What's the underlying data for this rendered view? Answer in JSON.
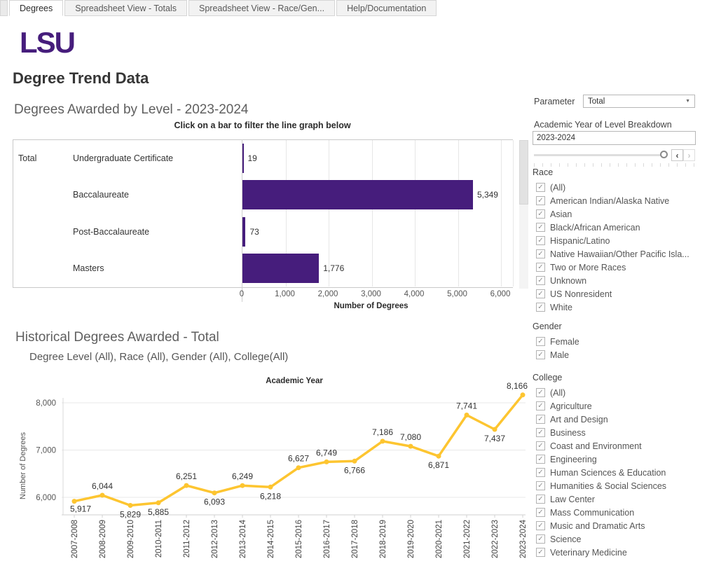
{
  "tabs": [
    {
      "label": "Degrees",
      "active": true
    },
    {
      "label": "Spreadsheet View - Totals",
      "active": false
    },
    {
      "label": "Spreadsheet View - Race/Gen...",
      "active": false
    },
    {
      "label": "Help/Documentation",
      "active": false
    }
  ],
  "logo_text": "LSU",
  "page_title": "Degree Trend Data",
  "colors": {
    "lsu_purple": "#461D7C",
    "lsu_gold": "#FDC530",
    "grid_light": "#e7e7e7",
    "axis_gray": "#cfcfcf",
    "text_dark": "#333333",
    "text_gray": "#555555"
  },
  "icons": {
    "caret": "▼",
    "prev": "‹",
    "next": "›",
    "check": "✓"
  },
  "chart_data": [
    {
      "type": "bar",
      "orientation": "horizontal",
      "title": "Degrees Awarded by Level - 2023-2024",
      "subtitle": "Click on a bar to filter the line graph below",
      "row_header": "Total",
      "categories": [
        "Undergraduate Certificate",
        "Baccalaureate",
        "Post-Baccalaureate",
        "Masters"
      ],
      "values": [
        19,
        5349,
        73,
        1776
      ],
      "value_labels": [
        "19",
        "5,349",
        "73",
        "1,776"
      ],
      "xlabel": "Number of Degrees",
      "xlim": [
        0,
        6000
      ],
      "xticks": [
        "0",
        "1,000",
        "2,000",
        "3,000",
        "4,000",
        "5,000",
        "6,000"
      ],
      "xtick_values": [
        0,
        1000,
        2000,
        3000,
        4000,
        5000,
        6000
      ],
      "grid": true,
      "bar_color": "#461D7C"
    },
    {
      "type": "line",
      "title": "Historical Degrees Awarded - Total",
      "subtitle": "Degree Level (All), Race (All), Gender (All), College(All)",
      "xlabel_top": "Academic Year",
      "ylabel": "Number of Degrees",
      "x": [
        "2007-2008",
        "2008-2009",
        "2009-2010",
        "2010-2011",
        "2011-2012",
        "2012-2013",
        "2013-2014",
        "2014-2015",
        "2015-2016",
        "2016-2017",
        "2017-2018",
        "2018-2019",
        "2019-2020",
        "2020-2021",
        "2021-2022",
        "2022-2023",
        "2023-2024"
      ],
      "values": [
        5917,
        6044,
        5829,
        5885,
        6251,
        6093,
        6249,
        6218,
        6627,
        6749,
        6766,
        7186,
        7080,
        6871,
        7741,
        7437,
        8166
      ],
      "value_labels": [
        "5,917",
        "6,044",
        "5,829",
        "5,885",
        "6,251",
        "6,093",
        "6,249",
        "6,218",
        "6,627",
        "6,749",
        "6,766",
        "7,186",
        "7,080",
        "6,871",
        "7,741",
        "7,437",
        "8,166"
      ],
      "label_pos": [
        "below-start",
        "above",
        "below",
        "below",
        "above",
        "below",
        "above",
        "below",
        "above",
        "above",
        "below",
        "above",
        "above",
        "below",
        "above",
        "below",
        "above-end"
      ],
      "yticks": [
        "6,000",
        "7,000",
        "8,000"
      ],
      "ytick_values": [
        6000,
        7000,
        8000
      ],
      "ylim": [
        5700,
        8300
      ],
      "grid": true,
      "line_color": "#FDC530"
    }
  ],
  "sidebar": {
    "parameter_label": "Parameter",
    "parameter_value": "Total",
    "year_filter_label": "Academic Year of Level Breakdown",
    "year_filter_value": "2023-2024",
    "race": {
      "label": "Race",
      "all_checked": true,
      "options": [
        "(All)",
        "American Indian/Alaska Native",
        "Asian",
        "Black/African American",
        "Hispanic/Latino",
        "Native Hawaiian/Other Pacific Isla...",
        "Two or More Races",
        "Unknown",
        "US Nonresident",
        "White"
      ]
    },
    "gender": {
      "label": "Gender",
      "all_checked": true,
      "options": [
        "Female",
        "Male"
      ]
    },
    "college": {
      "label": "College",
      "all_checked": true,
      "options": [
        "(All)",
        "Agriculture",
        "Art and Design",
        "Business",
        "Coast and Environment",
        "Engineering",
        "Human Sciences & Education",
        "Humanities & Social Sciences",
        "Law Center",
        "Mass Communication",
        "Music and Dramatic Arts",
        "Science",
        "Veterinary Medicine"
      ]
    }
  }
}
